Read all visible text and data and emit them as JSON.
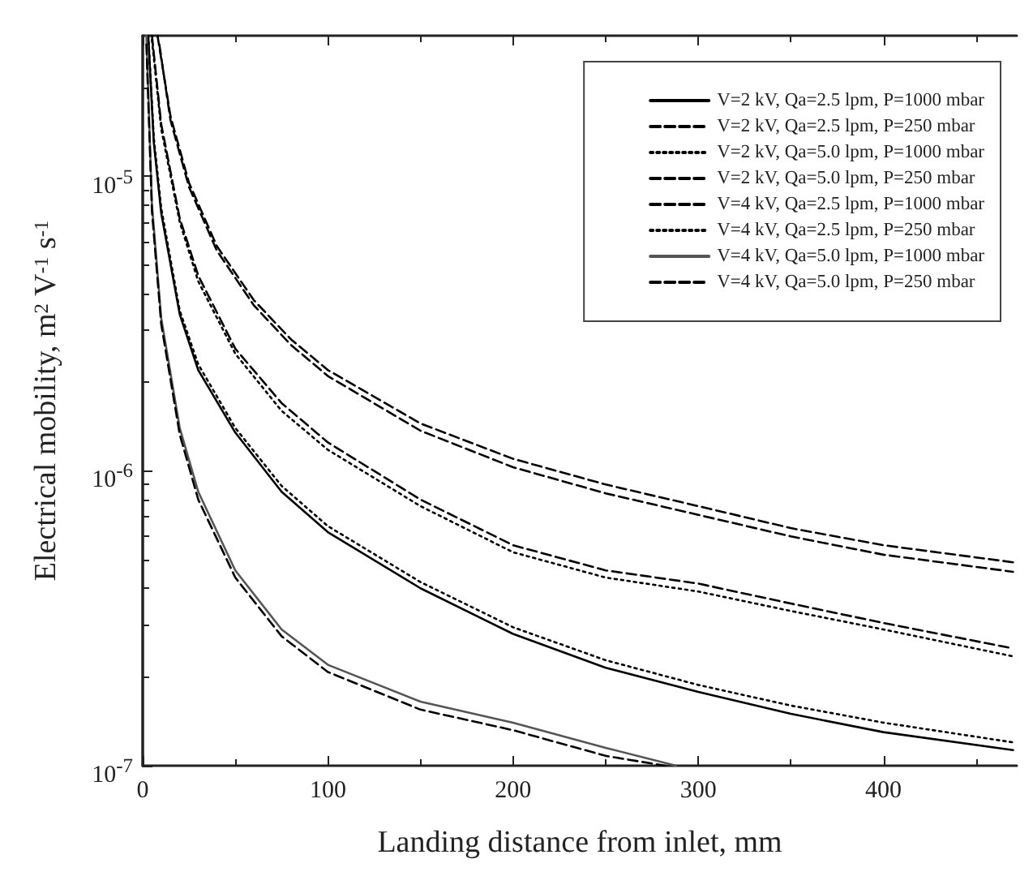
{
  "chart_data": {
    "type": "line",
    "xlabel": "Landing distance from inlet, mm",
    "ylabel": "Electrical mobility, m$^{2}$ V$^{-1}$ s$^{-1}$",
    "log": "y",
    "grid": false,
    "legend": "top right",
    "marker": "none",
    "xlim": [
      0,
      472
    ],
    "xticks": [
      0,
      100,
      200,
      300,
      400
    ],
    "ylim": [
      1e-07,
      3e-05
    ],
    "yticks": [
      {
        "value": 1e-07,
        "label": "10$^{-7}$"
      },
      {
        "value": 1e-06,
        "label": "10$^{-6}$"
      },
      {
        "value": 1e-05,
        "label": "10$^{-5}$"
      }
    ],
    "series": [
      {
        "name": "V=2 kV, Qa=2.5 lpm, P=1000 mbar",
        "color": "#000000",
        "line_style": "solid",
        "x": [
          3,
          6,
          10,
          20,
          30,
          50,
          75,
          100,
          150,
          200,
          250,
          300,
          350,
          400,
          470
        ],
        "values": [
          3e-05,
          1.3e-05,
          7.5e-06,
          3.4e-06,
          2.2e-06,
          1.35e-06,
          8.5e-07,
          6.2e-07,
          4e-07,
          2.8e-07,
          2.15e-07,
          1.78e-07,
          1.5e-07,
          1.3e-07,
          1.13e-07
        ]
      },
      {
        "name": "V=2 kV, Qa=2.5 lpm, P=250 mbar",
        "color": "#000000",
        "line_style": "dashed",
        "x": [
          9,
          15,
          25,
          40,
          60,
          80,
          100,
          150,
          200,
          250,
          300,
          350,
          400,
          470
        ],
        "values": [
          2.8e-05,
          1.55e-05,
          9.2e-06,
          5.6e-06,
          3.65e-06,
          2.68e-06,
          2.1e-06,
          1.37e-06,
          1.03e-06,
          8.4e-07,
          7.1e-07,
          6e-07,
          5.2e-07,
          4.55e-07
        ]
      },
      {
        "name": "V=2 kV, Qa=5.0 lpm, P=1000 mbar",
        "color": "#000000",
        "line_style": "dotted",
        "x": [
          3,
          6,
          10,
          20,
          30,
          50,
          75,
          100,
          150,
          200,
          250,
          300,
          350,
          400,
          470
        ],
        "values": [
          3e-05,
          1.35e-05,
          7.8e-06,
          3.5e-06,
          2.3e-06,
          1.4e-06,
          8.9e-07,
          6.5e-07,
          4.2e-07,
          2.95e-07,
          2.28e-07,
          1.88e-07,
          1.6e-07,
          1.4e-07,
          1.2e-07
        ]
      },
      {
        "name": "V=2 kV, Qa=5.0 lpm, P=250 mbar",
        "color": "#000000",
        "line_style": "dashed",
        "x": [
          8,
          15,
          25,
          40,
          60,
          80,
          100,
          150,
          200,
          250,
          300,
          350,
          400,
          470
        ],
        "values": [
          3e-05,
          1.6e-05,
          9.5e-06,
          5.8e-06,
          3.8e-06,
          2.8e-06,
          2.2e-06,
          1.45e-06,
          1.1e-06,
          9e-07,
          7.6e-07,
          6.4e-07,
          5.6e-07,
          4.9e-07
        ]
      },
      {
        "name": "V=4 kV, Qa=2.5 lpm, P=1000 mbar",
        "color": "#000000",
        "line_style": "dashed",
        "x": [
          5,
          10,
          20,
          30,
          50,
          75,
          100,
          150,
          200,
          250,
          300,
          350,
          400,
          470
        ],
        "values": [
          3e-05,
          1.5e-05,
          7.2e-06,
          4.6e-06,
          2.6e-06,
          1.7e-06,
          1.25e-06,
          8e-07,
          5.6e-07,
          4.6e-07,
          4.15e-07,
          3.55e-07,
          3.05e-07,
          2.5e-07
        ]
      },
      {
        "name": "V=4 kV, Qa=2.5 lpm, P=250 mbar",
        "color": "#000000",
        "line_style": "dotted",
        "x": [
          5,
          10,
          20,
          30,
          50,
          75,
          100,
          150,
          200,
          250,
          300,
          350,
          400,
          470
        ],
        "values": [
          2.9e-05,
          1.45e-05,
          7e-06,
          4.4e-06,
          2.5e-06,
          1.6e-06,
          1.18e-06,
          7.6e-07,
          5.3e-07,
          4.35e-07,
          3.9e-07,
          3.35e-07,
          2.9e-07,
          2.35e-07
        ]
      },
      {
        "name": "V=4 kV, Qa=5.0 lpm, P=1000 mbar",
        "color": "#555555",
        "line_style": "solid",
        "x": [
          2,
          5,
          10,
          20,
          30,
          50,
          75,
          100,
          150,
          200,
          250,
          288
        ],
        "values": [
          3e-05,
          8e-06,
          3.3e-06,
          1.4e-06,
          8.5e-07,
          4.6e-07,
          2.9e-07,
          2.2e-07,
          1.65e-07,
          1.4e-07,
          1.15e-07,
          1e-07
        ]
      },
      {
        "name": "V=4 kV, Qa=5.0 lpm, P=250 mbar",
        "color": "#000000",
        "line_style": "dashed",
        "x": [
          2,
          5,
          10,
          20,
          30,
          50,
          75,
          100,
          150,
          200,
          250,
          282
        ],
        "values": [
          2.8e-05,
          7.6e-06,
          3.15e-06,
          1.33e-06,
          8e-07,
          4.35e-07,
          2.75e-07,
          2.08e-07,
          1.55e-07,
          1.32e-07,
          1.08e-07,
          1e-07
        ]
      }
    ]
  }
}
